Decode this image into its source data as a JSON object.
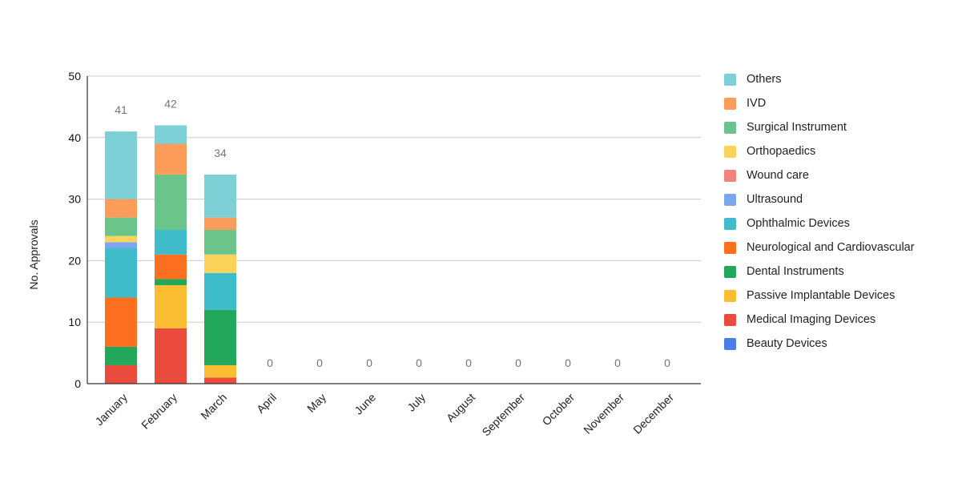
{
  "chart_data": {
    "type": "bar",
    "stacked": true,
    "ylabel": "No. Approvals",
    "xlabel": "",
    "ylim": [
      0,
      50
    ],
    "yticks": [
      0,
      10,
      20,
      30,
      40,
      50
    ],
    "grid": true,
    "legend_position": "right",
    "categories": [
      "January",
      "February",
      "March",
      "April",
      "May",
      "June",
      "July",
      "August",
      "September",
      "October",
      "November",
      "December"
    ],
    "totals": [
      41,
      42,
      34,
      0,
      0,
      0,
      0,
      0,
      0,
      0,
      0,
      0
    ],
    "series": [
      {
        "name": "Beauty Devices",
        "color": "#4a7fe7",
        "values": [
          0,
          0,
          0,
          0,
          0,
          0,
          0,
          0,
          0,
          0,
          0,
          0
        ]
      },
      {
        "name": "Medical Imaging Devices",
        "color": "#ea4b3c",
        "values": [
          3,
          9,
          1,
          0,
          0,
          0,
          0,
          0,
          0,
          0,
          0,
          0
        ]
      },
      {
        "name": "Passive Implantable Devices",
        "color": "#fbbd32",
        "values": [
          0,
          7,
          2,
          0,
          0,
          0,
          0,
          0,
          0,
          0,
          0,
          0
        ]
      },
      {
        "name": "Dental Instruments",
        "color": "#23a75a",
        "values": [
          3,
          1,
          9,
          0,
          0,
          0,
          0,
          0,
          0,
          0,
          0,
          0
        ]
      },
      {
        "name": "Neurological and Cardiovascular",
        "color": "#fb6f1f",
        "values": [
          8,
          4,
          0,
          0,
          0,
          0,
          0,
          0,
          0,
          0,
          0,
          0
        ]
      },
      {
        "name": "Ophthalmic Devices",
        "color": "#3ebcc9",
        "values": [
          8,
          4,
          6,
          0,
          0,
          0,
          0,
          0,
          0,
          0,
          0,
          0
        ]
      },
      {
        "name": "Ultrasound",
        "color": "#7aa7ef",
        "values": [
          1,
          0,
          0,
          0,
          0,
          0,
          0,
          0,
          0,
          0,
          0,
          0
        ]
      },
      {
        "name": "Wound care",
        "color": "#f2847b",
        "values": [
          0,
          0,
          0,
          0,
          0,
          0,
          0,
          0,
          0,
          0,
          0,
          0
        ]
      },
      {
        "name": "Orthopaedics",
        "color": "#fcd35a",
        "values": [
          1,
          0,
          3,
          0,
          0,
          0,
          0,
          0,
          0,
          0,
          0,
          0
        ]
      },
      {
        "name": "Surgical Instrument",
        "color": "#6bc48a",
        "values": [
          3,
          9,
          4,
          0,
          0,
          0,
          0,
          0,
          0,
          0,
          0,
          0
        ]
      },
      {
        "name": "IVD",
        "color": "#fc9c5a",
        "values": [
          3,
          5,
          2,
          0,
          0,
          0,
          0,
          0,
          0,
          0,
          0,
          0
        ]
      },
      {
        "name": "Others",
        "color": "#7dd1d6",
        "values": [
          11,
          3,
          7,
          0,
          0,
          0,
          0,
          0,
          0,
          0,
          0,
          0
        ]
      }
    ]
  }
}
